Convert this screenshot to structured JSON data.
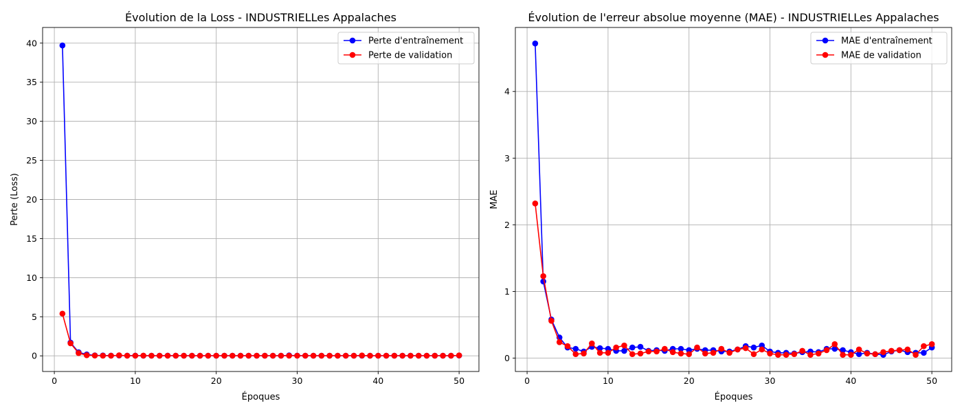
{
  "chart_data": [
    {
      "type": "line",
      "title": "Évolution de la Loss - INDUSTRIELLes Appalaches",
      "xlabel": "Époques",
      "ylabel": "Perte (Loss)",
      "xlim": [
        -1.45,
        52.45
      ],
      "ylim": [
        -2.0,
        42.0
      ],
      "xticks": [
        0,
        10,
        20,
        30,
        40,
        50
      ],
      "yticks": [
        0,
        5,
        10,
        15,
        20,
        25,
        30,
        35,
        40
      ],
      "grid": true,
      "legend_position": "top-right",
      "x": [
        1,
        2,
        3,
        4,
        5,
        6,
        7,
        8,
        9,
        10,
        11,
        12,
        13,
        14,
        15,
        16,
        17,
        18,
        19,
        20,
        21,
        22,
        23,
        24,
        25,
        26,
        27,
        28,
        29,
        30,
        31,
        32,
        33,
        34,
        35,
        36,
        37,
        38,
        39,
        40,
        41,
        42,
        43,
        44,
        45,
        46,
        47,
        48,
        49,
        50
      ],
      "series": [
        {
          "name": "Perte d'entraînement",
          "color": "#0000ff",
          "values": [
            39.7,
            1.7,
            0.45,
            0.18,
            0.06,
            0.05,
            0.03,
            0.05,
            0.03,
            0.03,
            0.02,
            0.02,
            0.02,
            0.03,
            0.02,
            0.02,
            0.02,
            0.02,
            0.02,
            0.02,
            0.02,
            0.02,
            0.02,
            0.02,
            0.02,
            0.02,
            0.02,
            0.02,
            0.06,
            0.03,
            0.02,
            0.02,
            0.02,
            0.02,
            0.02,
            0.02,
            0.02,
            0.02,
            0.02,
            0.02,
            0.02,
            0.02,
            0.02,
            0.02,
            0.02,
            0.02,
            0.02,
            0.02,
            0.02,
            0.04
          ]
        },
        {
          "name": "Perte de validation",
          "color": "#ff0000",
          "values": [
            5.4,
            1.6,
            0.35,
            0.08,
            0.04,
            0.02,
            0.02,
            0.07,
            0.02,
            0.02,
            0.03,
            0.02,
            0.02,
            0.02,
            0.02,
            0.02,
            0.02,
            0.02,
            0.02,
            0.02,
            0.02,
            0.02,
            0.02,
            0.02,
            0.02,
            0.02,
            0.02,
            0.02,
            0.02,
            0.02,
            0.02,
            0.02,
            0.02,
            0.02,
            0.02,
            0.02,
            0.02,
            0.05,
            0.02,
            0.02,
            0.02,
            0.02,
            0.02,
            0.02,
            0.02,
            0.02,
            0.02,
            0.02,
            0.02,
            0.06
          ]
        }
      ]
    },
    {
      "type": "line",
      "title": "Évolution de l'erreur absolue moyenne (MAE) - INDUSTRIELLes Appalaches",
      "xlabel": "Époques",
      "ylabel": "MAE",
      "xlim": [
        -1.45,
        52.45
      ],
      "ylim": [
        -0.2,
        4.96
      ],
      "xticks": [
        0,
        10,
        20,
        30,
        40,
        50
      ],
      "yticks": [
        0,
        1,
        2,
        3,
        4
      ],
      "grid": true,
      "legend_position": "top-right",
      "x": [
        1,
        2,
        3,
        4,
        5,
        6,
        7,
        8,
        9,
        10,
        11,
        12,
        13,
        14,
        15,
        16,
        17,
        18,
        19,
        20,
        21,
        22,
        23,
        24,
        25,
        26,
        27,
        28,
        29,
        30,
        31,
        32,
        33,
        34,
        35,
        36,
        37,
        38,
        39,
        40,
        41,
        42,
        43,
        44,
        45,
        46,
        47,
        48,
        49,
        50
      ],
      "series": [
        {
          "name": "MAE d'entraînement",
          "color": "#0000ff",
          "values": [
            4.72,
            1.15,
            0.58,
            0.31,
            0.16,
            0.14,
            0.1,
            0.17,
            0.15,
            0.14,
            0.11,
            0.11,
            0.16,
            0.17,
            0.11,
            0.12,
            0.11,
            0.14,
            0.14,
            0.12,
            0.14,
            0.12,
            0.12,
            0.1,
            0.1,
            0.13,
            0.18,
            0.16,
            0.19,
            0.1,
            0.08,
            0.08,
            0.07,
            0.09,
            0.1,
            0.09,
            0.14,
            0.14,
            0.12,
            0.09,
            0.06,
            0.08,
            0.06,
            0.05,
            0.1,
            0.12,
            0.09,
            0.08,
            0.08,
            0.16
          ]
        },
        {
          "name": "MAE de validation",
          "color": "#ff0000",
          "values": [
            2.32,
            1.23,
            0.56,
            0.24,
            0.18,
            0.06,
            0.07,
            0.22,
            0.08,
            0.08,
            0.16,
            0.19,
            0.06,
            0.07,
            0.1,
            0.1,
            0.14,
            0.09,
            0.07,
            0.06,
            0.16,
            0.07,
            0.08,
            0.14,
            0.08,
            0.13,
            0.15,
            0.06,
            0.13,
            0.07,
            0.05,
            0.05,
            0.06,
            0.11,
            0.05,
            0.07,
            0.12,
            0.21,
            0.05,
            0.05,
            0.13,
            0.07,
            0.06,
            0.09,
            0.11,
            0.12,
            0.13,
            0.05,
            0.18,
            0.21
          ]
        }
      ]
    }
  ]
}
